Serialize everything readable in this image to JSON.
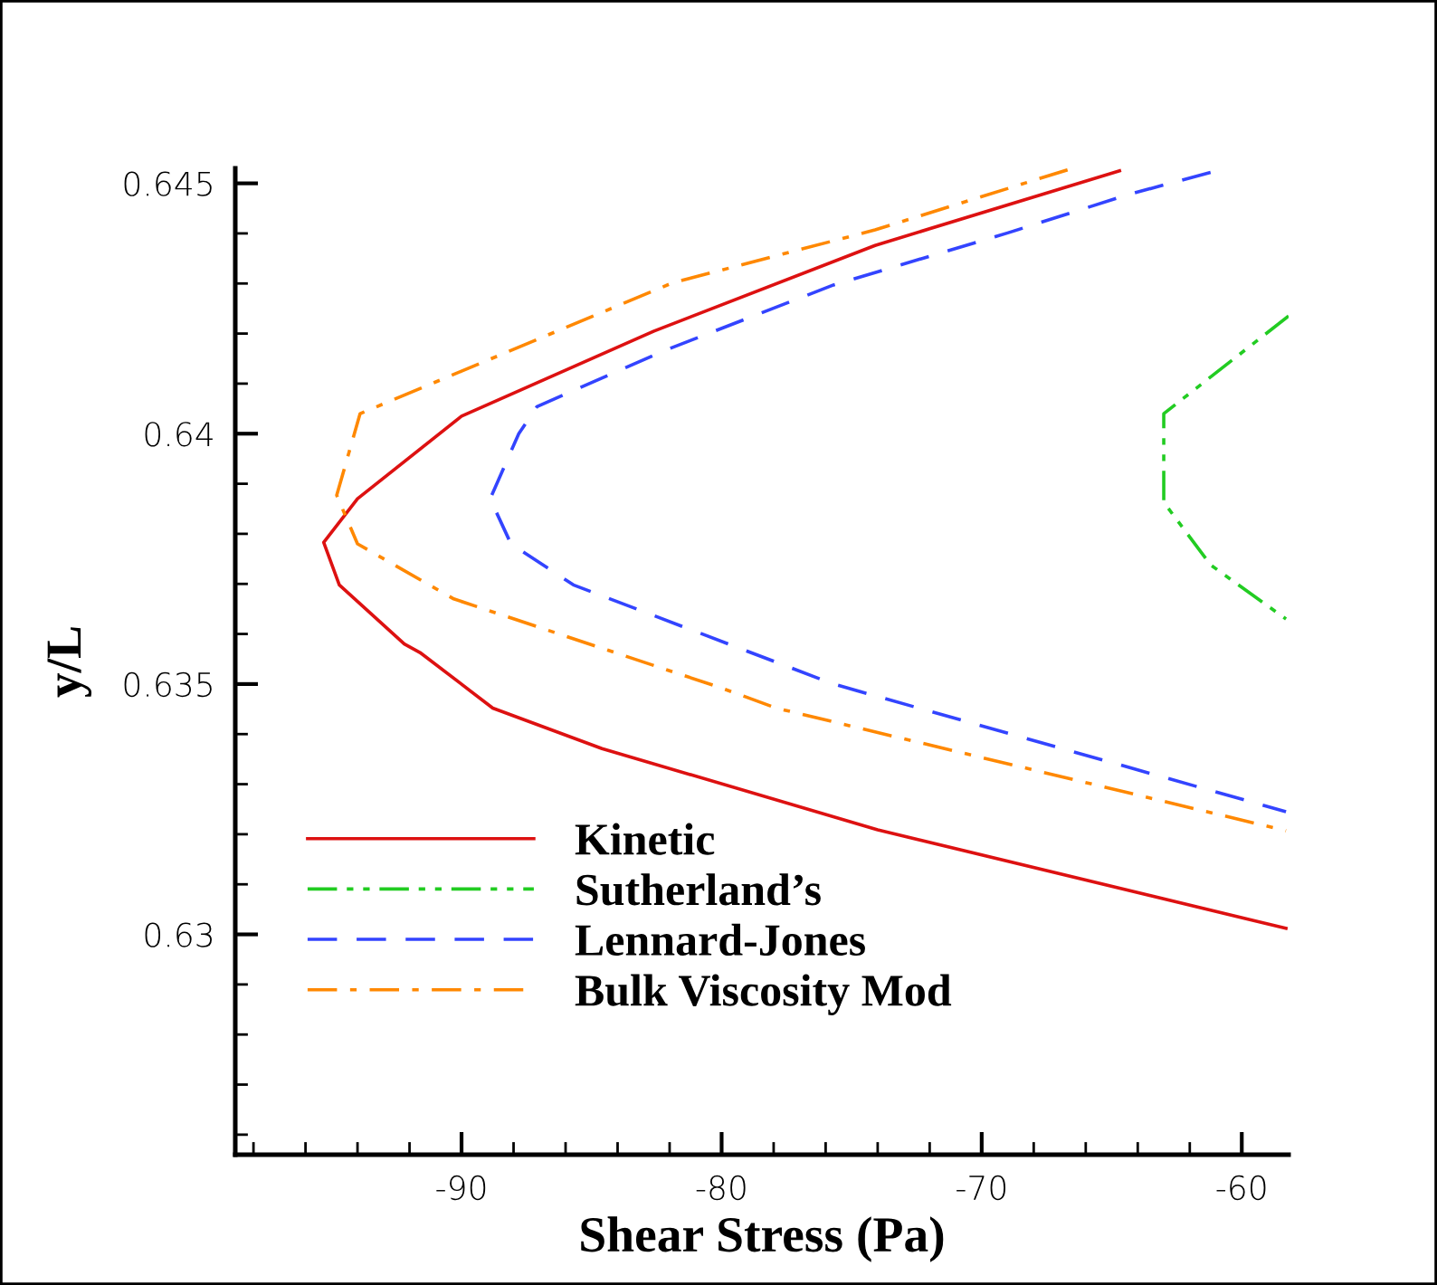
{
  "chart_data": {
    "type": "line",
    "xlabel": "Shear Stress (Pa)",
    "ylabel": "y/L",
    "xlim": [
      -98.7,
      -58.2
    ],
    "ylim": [
      0.6256,
      0.6453
    ],
    "xticks": [
      -90,
      -80,
      -70,
      -60
    ],
    "yticks": [
      0.63,
      0.635,
      0.64,
      0.645
    ],
    "grid": false,
    "legend": "bottom left",
    "marker": "none",
    "series": [
      {
        "name": "Kinetic",
        "color": "#dd1111",
        "line_style": "solid",
        "x": [
          -64.7,
          -74.1,
          -82.6,
          -90.0,
          -94.0,
          -95.3,
          -94.7,
          -92.2,
          -91.6,
          -88.8,
          -84.6,
          -74.0,
          -58.3
        ],
        "values": [
          0.64525,
          0.64376,
          0.64205,
          0.64035,
          0.6387,
          0.63783,
          0.63698,
          0.6358,
          0.63563,
          0.63452,
          0.63371,
          0.63209,
          0.63012
        ]
      },
      {
        "name": "Sutherland’s",
        "color": "#22cc22",
        "line_style": "dashdotdot",
        "x": [
          -58.2,
          -63.0,
          -63.0,
          -61.2,
          -58.3
        ],
        "values": [
          0.64235,
          0.6404,
          0.63863,
          0.63738,
          0.6363
        ]
      },
      {
        "name": "Lennard-Jones",
        "color": "#3344ff",
        "line_style": "dashed",
        "x": [
          -61.2,
          -64.4,
          -69.0,
          -75.7,
          -82.2,
          -87.1,
          -87.8,
          -88.9,
          -88.1,
          -85.7,
          -75.7,
          -58.3
        ],
        "values": [
          0.64522,
          0.64477,
          0.64401,
          0.64297,
          0.64166,
          0.64054,
          0.64,
          0.6387,
          0.6378,
          0.63698,
          0.635,
          0.63245
        ]
      },
      {
        "name": "Bulk Viscosity Mod",
        "color": "#ff8800",
        "line_style": "dashdot",
        "x": [
          -66.7,
          -74.1,
          -81.9,
          -90.0,
          -93.9,
          -94.8,
          -94.0,
          -90.3,
          -80.0,
          -77.9,
          -58.3
        ],
        "values": [
          0.64527,
          0.64407,
          0.64301,
          0.64125,
          0.6404,
          0.63877,
          0.6378,
          0.6367,
          0.63492,
          0.63452,
          0.63207
        ]
      }
    ]
  }
}
